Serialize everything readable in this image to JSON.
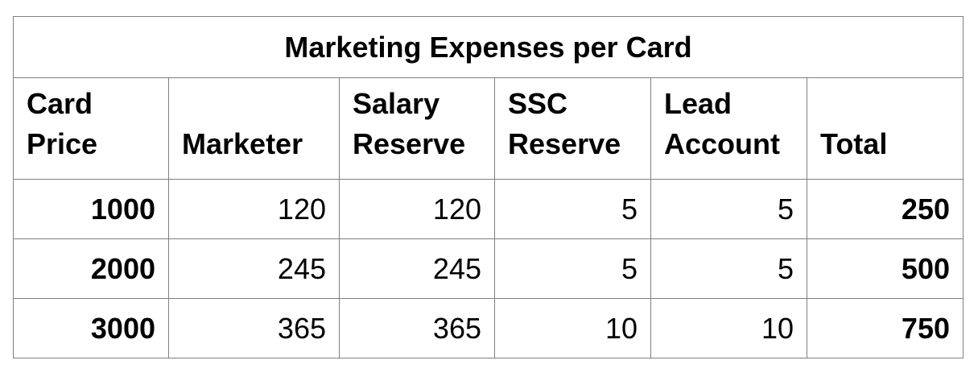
{
  "table": {
    "title": "Marketing Expenses per Card",
    "headers": [
      [
        "Card",
        "Price"
      ],
      [
        "",
        "Marketer"
      ],
      [
        "Salary",
        "Reserve"
      ],
      [
        "SSC",
        "Reserve"
      ],
      [
        "Lead",
        "Account"
      ],
      [
        "",
        "Total"
      ]
    ],
    "rows": [
      [
        "1000",
        "120",
        "120",
        "5",
        "5",
        "250"
      ],
      [
        "2000",
        "245",
        "245",
        "5",
        "5",
        "500"
      ],
      [
        "3000",
        "365",
        "365",
        "10",
        "10",
        "750"
      ]
    ],
    "colors": {
      "border": "#808080",
      "text": "#000000",
      "background": "#ffffff"
    }
  }
}
